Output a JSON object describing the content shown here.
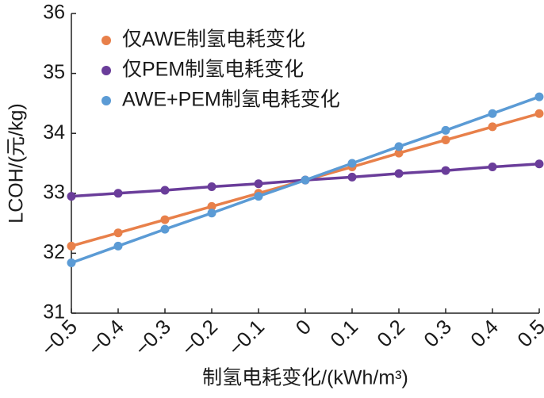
{
  "chart_data": {
    "type": "line",
    "x_label": "制氢电耗变化/(kWh/m³)",
    "y_label": "LCOH/(元/kg)",
    "x": [
      -0.5,
      -0.4,
      -0.3,
      -0.2,
      -0.1,
      0,
      0.1,
      0.2,
      0.3,
      0.4,
      0.5
    ],
    "series": [
      {
        "name": "仅AWE制氢电耗变化",
        "color": "#e8804a",
        "values": [
          32.12,
          32.34,
          32.56,
          32.78,
          33.0,
          33.22,
          33.44,
          33.67,
          33.89,
          34.11,
          34.33
        ]
      },
      {
        "name": "仅PEM制氢电耗变化",
        "color": "#6a3d9a",
        "values": [
          32.95,
          33.0,
          33.05,
          33.11,
          33.16,
          33.22,
          33.27,
          33.33,
          33.38,
          33.44,
          33.49
        ]
      },
      {
        "name": "AWE+PEM制氢电耗变化",
        "color": "#5b9bd5",
        "values": [
          31.84,
          32.12,
          32.4,
          32.67,
          32.95,
          33.22,
          33.5,
          33.78,
          34.05,
          34.33,
          34.61
        ]
      }
    ],
    "xlim": [
      -0.5,
      0.5
    ],
    "xticks": [
      {
        "value": -0.5,
        "label": "−0.5"
      },
      {
        "value": -0.4,
        "label": "−0.4"
      },
      {
        "value": -0.3,
        "label": "−0.3"
      },
      {
        "value": -0.2,
        "label": "−0.2"
      },
      {
        "value": -0.1,
        "label": "−0.1"
      },
      0,
      0.1,
      0.2,
      0.3,
      0.4,
      0.5
    ],
    "ylim": [
      31,
      36
    ],
    "yticks": [
      31,
      32,
      33,
      34,
      35,
      36
    ],
    "legend": "upper left"
  }
}
